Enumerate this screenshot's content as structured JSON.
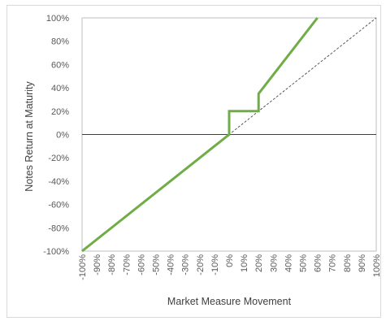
{
  "chart_data": {
    "type": "line",
    "title": "",
    "xlabel": "Market Measure Movement",
    "ylabel": "Notes Return at Maturity",
    "xlim": [
      -100,
      100
    ],
    "ylim": [
      -100,
      100
    ],
    "x_ticks": [
      -100,
      -90,
      -80,
      -70,
      -60,
      -50,
      -40,
      -30,
      -20,
      -10,
      0,
      10,
      20,
      30,
      40,
      50,
      60,
      70,
      80,
      90,
      100
    ],
    "x_tick_labels": [
      "-100%",
      "-90%",
      "-80%",
      "-70%",
      "-60%",
      "-50%",
      "-40%",
      "-30%",
      "-20%",
      "-10%",
      "0%",
      "10%",
      "20%",
      "30%",
      "40%",
      "50%",
      "60%",
      "70%",
      "80%",
      "90%",
      "100%"
    ],
    "y_ticks": [
      -100,
      -80,
      -60,
      -40,
      -20,
      0,
      20,
      40,
      60,
      80,
      100
    ],
    "y_tick_labels": [
      "-100%",
      "-80%",
      "-60%",
      "-40%",
      "-20%",
      "0%",
      "20%",
      "40%",
      "60%",
      "80%",
      "100%"
    ],
    "grid": false,
    "legend": "none",
    "series": [
      {
        "style": "solid",
        "color": "#70ad47",
        "x": [
          -100,
          0,
          0,
          20,
          20,
          60
        ],
        "y": [
          -100,
          0,
          20,
          20,
          35,
          100
        ]
      },
      {
        "style": "dashed",
        "color": "#595959",
        "x": [
          -100,
          100
        ],
        "y": [
          -100,
          100
        ]
      }
    ]
  }
}
